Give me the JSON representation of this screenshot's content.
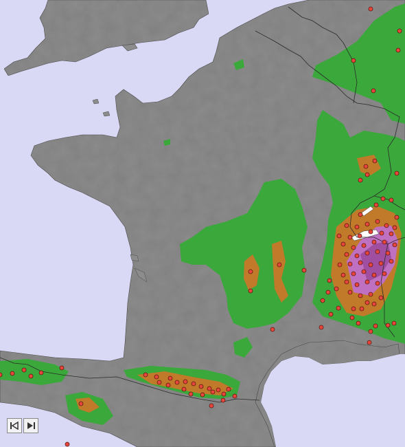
{
  "map": {
    "colors": {
      "sea": "#d9d9f5",
      "land": "#8c8c8c",
      "lowland_green": "#3aa83a",
      "hill_orange": "#c07a2a",
      "mountain_purple": "#c070c0",
      "station_fill": "#e8453c",
      "station_stroke": "#5a1a10",
      "border": "#2a2a2a"
    }
  },
  "controls": {
    "first_icon": "skip-to-start-icon",
    "next_icon": "step-forward-icon"
  }
}
